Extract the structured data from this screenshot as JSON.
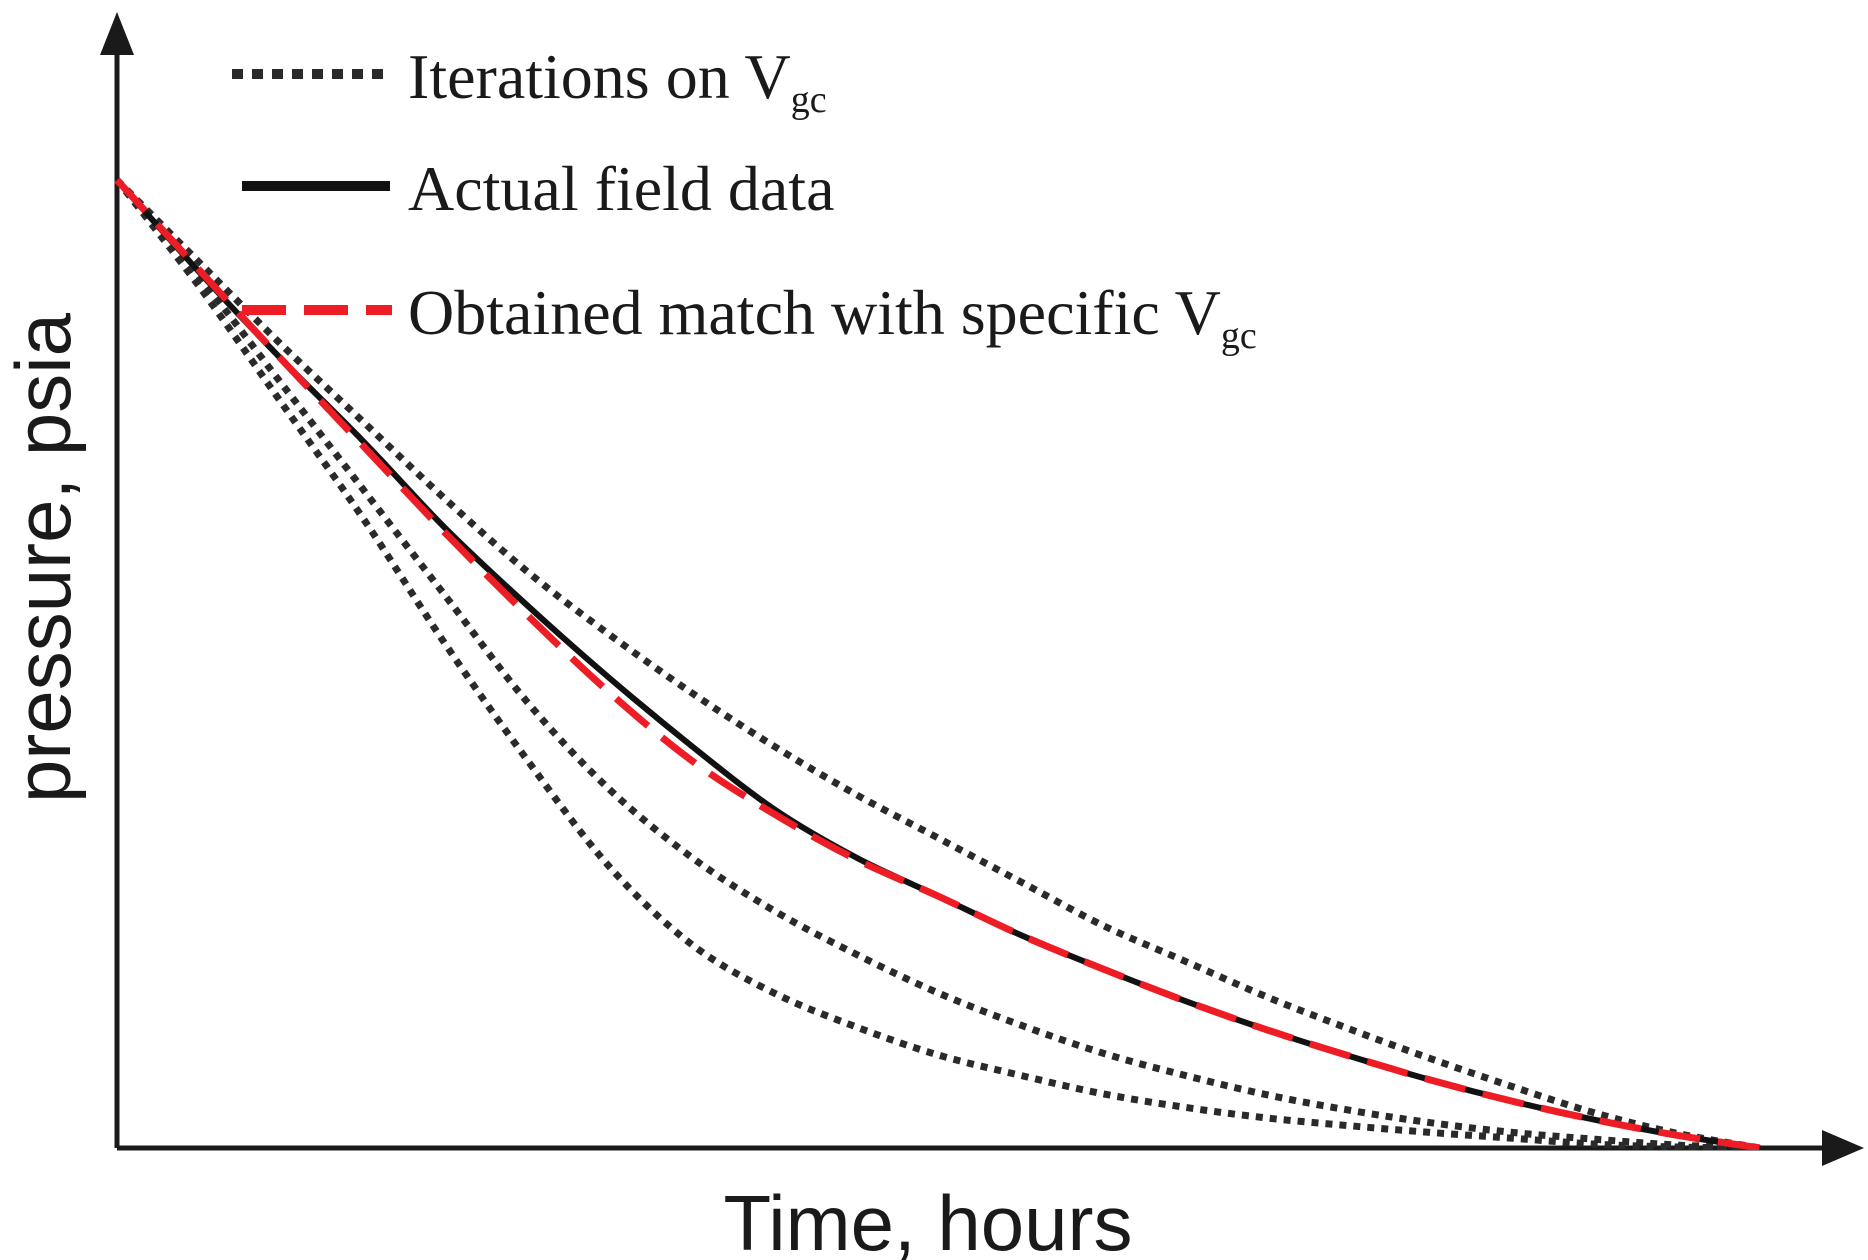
{
  "chart_data": {
    "type": "line",
    "title": "",
    "xlabel": "Time, hours",
    "ylabel": "pressure, psia",
    "xlim": [
      0,
      100
    ],
    "ylim": [
      0,
      100
    ],
    "grid": false,
    "legend_position": "top-left",
    "legend": [
      {
        "style": "dotted",
        "text": "Iterations on V",
        "sub": "gc"
      },
      {
        "style": "solid",
        "text": "Actual field data",
        "sub": ""
      },
      {
        "style": "dashed",
        "text": "Obtained match with specific V",
        "sub": "gc"
      }
    ],
    "series": [
      {
        "name": "Iterations on Vgc (1)",
        "style": "dotted",
        "x": [
          0,
          5,
          10,
          15,
          20,
          25,
          30,
          35,
          40,
          45,
          50,
          55,
          60,
          65,
          70,
          75,
          80,
          85,
          90,
          95,
          100
        ],
        "y": [
          100,
          89,
          77,
          65,
          52,
          40,
          29,
          21,
          16,
          12.5,
          9.6,
          7.5,
          5.6,
          4.2,
          3.1,
          2.3,
          1.6,
          1,
          0.4,
          0.1,
          0
        ]
      },
      {
        "name": "Iterations on Vgc (2)",
        "style": "dotted",
        "x": [
          0,
          5,
          10,
          15,
          20,
          25,
          30,
          35,
          40,
          45,
          50,
          55,
          60,
          65,
          70,
          75,
          80,
          85,
          90,
          95,
          100
        ],
        "y": [
          100,
          90,
          79,
          68,
          57,
          46,
          37,
          30,
          24.5,
          20,
          16,
          12.7,
          9.8,
          7.5,
          5.5,
          3.9,
          2.6,
          1.6,
          0.9,
          0.3,
          0
        ]
      },
      {
        "name": "Iterations on Vgc (3)",
        "style": "dotted",
        "x": [
          0,
          5,
          10,
          15,
          20,
          25,
          30,
          35,
          40,
          45,
          50,
          55,
          60,
          65,
          70,
          75,
          80,
          85,
          90,
          95,
          100
        ],
        "y": [
          100,
          91.5,
          83,
          75,
          67,
          59.5,
          53,
          47,
          41.5,
          36.5,
          32,
          27.5,
          23,
          19.3,
          15.6,
          12.3,
          9.2,
          6.3,
          3.6,
          1.5,
          0
        ]
      },
      {
        "name": "Actual field data",
        "style": "solid",
        "x": [
          0,
          5,
          10,
          15,
          20,
          25,
          30,
          35,
          40,
          45,
          50,
          55,
          60,
          65,
          70,
          75,
          80,
          85,
          90,
          95,
          100
        ],
        "y": [
          100,
          90.5,
          81.5,
          73,
          64,
          56,
          48.5,
          41.5,
          35,
          30,
          26,
          22,
          18.5,
          15.2,
          12.2,
          9.5,
          7,
          4.8,
          2.9,
          1.3,
          0
        ]
      },
      {
        "name": "Obtained match with specific Vgc",
        "style": "dashed",
        "x": [
          0,
          5,
          10,
          15,
          20,
          25,
          30,
          35,
          40,
          45,
          50,
          55,
          60,
          65,
          70,
          75,
          80,
          85,
          90,
          95,
          100
        ],
        "y": [
          100,
          90.7,
          81.5,
          72.5,
          63.5,
          55,
          47,
          40,
          34.5,
          29.8,
          26,
          22,
          18.5,
          15.2,
          12.2,
          9.5,
          7,
          4.8,
          2.9,
          1.3,
          0
        ]
      }
    ]
  }
}
